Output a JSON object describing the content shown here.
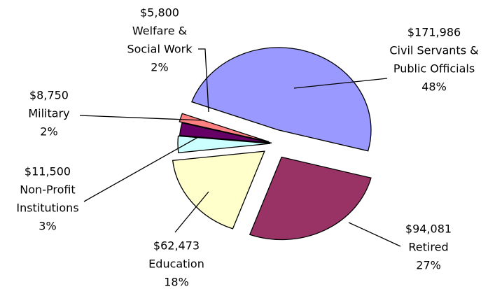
{
  "chart_data": {
    "type": "pie",
    "label_lines": [
      [
        "Civil Servants &",
        "Public Officials"
      ],
      [
        "Retired"
      ],
      [
        "Education"
      ],
      [
        "Non-Profit",
        "Institutions"
      ],
      [
        "Military"
      ],
      [
        "Welfare &",
        "Social Work"
      ]
    ],
    "values": [
      171986,
      94081,
      62473,
      11500,
      8750,
      5800
    ],
    "value_labels": [
      "$171,986",
      "$94,081",
      "$62,473",
      "$11,500",
      "$8,750",
      "$5,800"
    ],
    "percents": [
      48,
      27,
      18,
      3,
      2,
      2
    ],
    "percent_labels": [
      "48%",
      "27%",
      "18%",
      "3%",
      "2%",
      "2%"
    ],
    "colors": [
      "#9999ff",
      "#993366",
      "#ffffcc",
      "#ccffff",
      "#660066",
      "#ff8080"
    ]
  }
}
